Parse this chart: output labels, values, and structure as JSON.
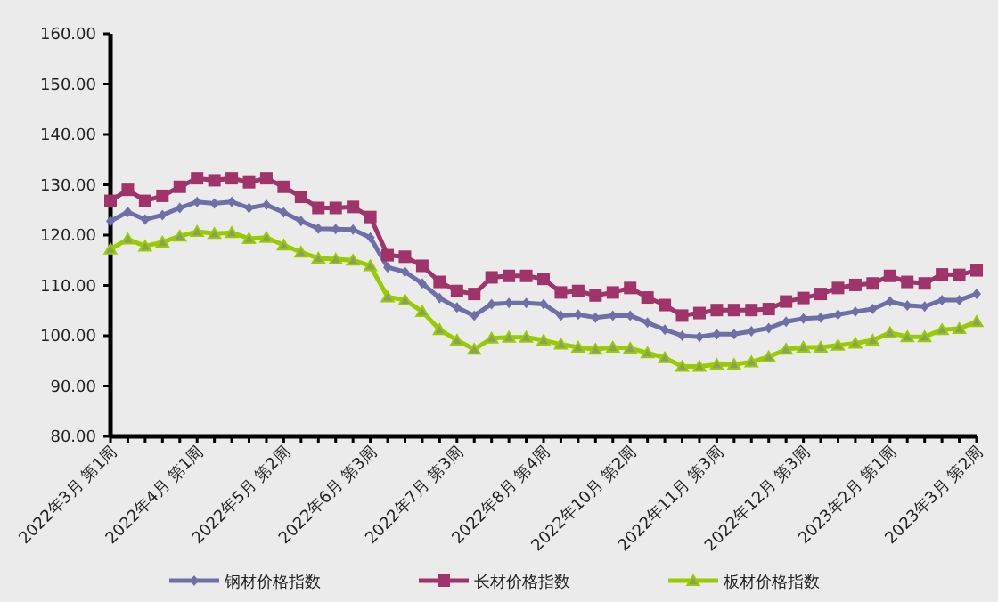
{
  "chart_data": {
    "type": "line",
    "categories": [
      "2022年3月 第1周",
      null,
      null,
      null,
      null,
      "2022年4月 第1周",
      null,
      null,
      null,
      null,
      "2022年5月 第2周",
      null,
      null,
      null,
      null,
      "2022年6月 第3周",
      null,
      null,
      null,
      null,
      "2022年7月 第3周",
      null,
      null,
      null,
      null,
      "2022年8月 第4周",
      null,
      null,
      null,
      null,
      "2022年10月 第2周",
      null,
      null,
      null,
      null,
      "2022年11月 第3周",
      null,
      null,
      null,
      null,
      "2022年12月 第3周",
      null,
      null,
      null,
      null,
      "2023年2月 第1周",
      null,
      null,
      null,
      null,
      "2023年3月 第2周"
    ],
    "series": [
      {
        "name": "钢材价格指数",
        "color": "#6f6fa8",
        "marker": "diamond",
        "values": [
          122.8,
          124.6,
          123.1,
          124.0,
          125.4,
          126.6,
          126.3,
          126.6,
          125.4,
          126.0,
          124.5,
          122.8,
          121.3,
          121.2,
          121.1,
          119.5,
          113.6,
          112.7,
          110.4,
          107.5,
          105.6,
          104.0,
          106.3,
          106.5,
          106.5,
          106.3,
          104.0,
          104.2,
          103.6,
          104.0,
          104.0,
          102.6,
          101.2,
          100.0,
          99.8,
          100.3,
          100.3,
          100.9,
          101.5,
          102.8,
          103.4,
          103.6,
          104.2,
          104.8,
          105.3,
          106.8,
          106.0,
          105.8,
          107.1,
          107.1,
          108.3
        ]
      },
      {
        "name": "长材价格指数",
        "color": "#a0336a",
        "marker": "square",
        "values": [
          126.8,
          129.0,
          126.8,
          127.8,
          129.6,
          131.3,
          130.9,
          131.3,
          130.5,
          131.3,
          129.6,
          127.6,
          125.4,
          125.4,
          125.6,
          123.6,
          116.0,
          115.7,
          113.9,
          110.7,
          108.9,
          108.3,
          111.6,
          111.9,
          111.9,
          111.3,
          108.6,
          108.9,
          108.0,
          108.6,
          109.5,
          107.6,
          106.1,
          104.0,
          104.5,
          105.1,
          105.1,
          105.1,
          105.3,
          106.8,
          107.5,
          108.3,
          109.5,
          110.1,
          110.4,
          111.9,
          110.7,
          110.4,
          112.2,
          112.1,
          113.0
        ]
      },
      {
        "name": "板材价格指数",
        "color": "#99cc00",
        "marker": "triangle",
        "values": [
          117.2,
          119.2,
          117.8,
          118.6,
          119.8,
          120.7,
          120.3,
          120.5,
          119.3,
          119.5,
          118.0,
          116.6,
          115.4,
          115.2,
          115.0,
          113.9,
          107.7,
          107.1,
          104.8,
          101.2,
          99.1,
          97.3,
          99.5,
          99.7,
          99.7,
          99.1,
          98.3,
          97.7,
          97.3,
          97.7,
          97.5,
          96.6,
          95.6,
          93.9,
          93.9,
          94.3,
          94.3,
          94.8,
          95.8,
          97.3,
          97.7,
          97.7,
          98.1,
          98.5,
          99.1,
          100.6,
          99.8,
          99.8,
          101.2,
          101.4,
          102.8
        ]
      }
    ],
    "ylim": [
      80,
      160
    ],
    "yticks": [
      {
        "value": 80,
        "label": "80.00"
      },
      {
        "value": 90,
        "label": "90.00"
      },
      {
        "value": 100,
        "label": "100.00"
      },
      {
        "value": 110,
        "label": "110.00"
      },
      {
        "value": 120,
        "label": "120.00"
      },
      {
        "value": 130,
        "label": "130.00"
      },
      {
        "value": 140,
        "label": "140.00"
      },
      {
        "value": 150,
        "label": "150.00"
      },
      {
        "value": 160,
        "label": "160.00"
      }
    ],
    "grid": false,
    "legend": "bottom"
  }
}
